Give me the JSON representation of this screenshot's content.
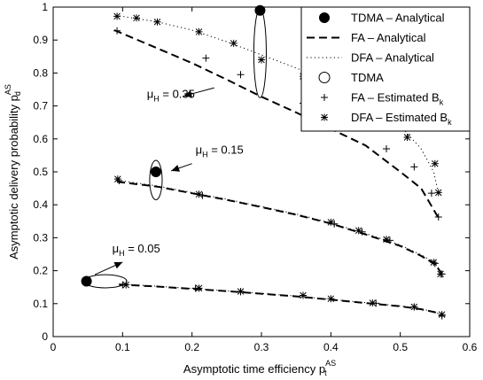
{
  "chart_data": {
    "type": "line",
    "xlabel": "Asymptotic time efficiency p",
    "xlabel_sub": "t",
    "xlabel_sup": "AS",
    "ylabel": "Asymptotic delivery probability p",
    "ylabel_sub": "d",
    "ylabel_sup": "AS",
    "xlim": [
      0,
      0.6
    ],
    "ylim": [
      0,
      1
    ],
    "xticks": [
      0,
      0.1,
      0.2,
      0.3,
      0.4,
      0.5,
      0.6
    ],
    "xtick_labels": [
      "0",
      "0.1",
      "0.2",
      "0.3",
      "0.4",
      "0.5",
      "0.6"
    ],
    "yticks": [
      0,
      0.1,
      0.2,
      0.3,
      0.4,
      0.5,
      0.6,
      0.7,
      0.8,
      0.9,
      1
    ],
    "ytick_labels": [
      "0",
      "0.1",
      "0.2",
      "0.3",
      "0.4",
      "0.5",
      "0.6",
      "0.7",
      "0.8",
      "0.9",
      "1"
    ],
    "grid": false,
    "legend_position": "top-right",
    "legend": [
      {
        "key": "tdma_analytical",
        "text": "TDMA – Analytical",
        "sub": "",
        "marker": "filled-circle",
        "line": "none"
      },
      {
        "key": "fa_analytical",
        "text": "FA – Analytical",
        "sub": "",
        "marker": "none",
        "line": "dashed"
      },
      {
        "key": "dfa_analytical",
        "text": "DFA – Analytical",
        "sub": "",
        "marker": "none",
        "line": "dotted"
      },
      {
        "key": "tdma",
        "text": "TDMA",
        "sub": "",
        "marker": "open-circle",
        "line": "none"
      },
      {
        "key": "fa_estimated",
        "text": "FA – Estimated B",
        "sub": "k",
        "marker": "plus",
        "line": "none"
      },
      {
        "key": "dfa_estimated",
        "text": "DFA – Estimated B",
        "sub": "k",
        "marker": "asterisk",
        "line": "none"
      }
    ],
    "groups": [
      {
        "mu_label": "μ",
        "mu_sub": "H",
        "mu_value": " = 0.35",
        "tdma_point": [
          0.298,
          0.99
        ],
        "ellipse": {
          "cx": 0.298,
          "cy": 0.86,
          "rx": 0.009,
          "ry": 0.135
        },
        "fa_curve": {
          "x": [
            0.088,
            0.15,
            0.2,
            0.25,
            0.3,
            0.35,
            0.4,
            0.45,
            0.5,
            0.53,
            0.555
          ],
          "y": [
            0.93,
            0.875,
            0.83,
            0.78,
            0.728,
            0.68,
            0.63,
            0.58,
            0.5,
            0.45,
            0.36
          ]
        },
        "dfa_curve": {
          "x": [
            0.09,
            0.15,
            0.2,
            0.25,
            0.3,
            0.35,
            0.4,
            0.45,
            0.5,
            0.53,
            0.548,
            0.555
          ],
          "y": [
            0.975,
            0.955,
            0.93,
            0.895,
            0.855,
            0.815,
            0.77,
            0.72,
            0.64,
            0.57,
            0.5,
            0.435
          ]
        },
        "fa_est": {
          "x": [
            0.092,
            0.22,
            0.27,
            0.36,
            0.48,
            0.52,
            0.545,
            0.555
          ],
          "y": [
            0.928,
            0.845,
            0.795,
            0.708,
            0.57,
            0.515,
            0.435,
            0.363
          ]
        },
        "dfa_est": {
          "x": [
            0.092,
            0.12,
            0.15,
            0.21,
            0.26,
            0.3,
            0.36,
            0.44,
            0.51,
            0.55,
            0.555
          ],
          "y": [
            0.972,
            0.967,
            0.955,
            0.925,
            0.89,
            0.84,
            0.79,
            0.72,
            0.605,
            0.525,
            0.437
          ]
        },
        "annotation": {
          "tx": 0.135,
          "ty": 0.725,
          "ax": 0.188,
          "ay": 0.73,
          "bx": 0.232,
          "by": 0.755
        }
      },
      {
        "mu_label": "μ",
        "mu_sub": "H",
        "mu_value": " = 0.15",
        "tdma_point": [
          0.148,
          0.5
        ],
        "ellipse": {
          "cx": 0.148,
          "cy": 0.475,
          "rx": 0.009,
          "ry": 0.06
        },
        "fa_curve": {
          "x": [
            0.092,
            0.15,
            0.2,
            0.25,
            0.3,
            0.35,
            0.4,
            0.45,
            0.5,
            0.53,
            0.55,
            0.56
          ],
          "y": [
            0.47,
            0.455,
            0.435,
            0.415,
            0.393,
            0.37,
            0.343,
            0.31,
            0.275,
            0.245,
            0.22,
            0.19
          ]
        },
        "dfa_curve": {
          "x": [
            0.092,
            0.15,
            0.2,
            0.25,
            0.3,
            0.35,
            0.4,
            0.45,
            0.5,
            0.53,
            0.55,
            0.56
          ],
          "y": [
            0.475,
            0.457,
            0.437,
            0.417,
            0.395,
            0.372,
            0.345,
            0.313,
            0.278,
            0.248,
            0.223,
            0.192
          ]
        },
        "fa_est": {
          "x": [
            0.095,
            0.215,
            0.405,
            0.445,
            0.485,
            0.55,
            0.56
          ],
          "y": [
            0.473,
            0.428,
            0.342,
            0.318,
            0.292,
            0.222,
            0.19
          ]
        },
        "dfa_est": {
          "x": [
            0.093,
            0.21,
            0.4,
            0.44,
            0.48,
            0.548,
            0.558
          ],
          "y": [
            0.478,
            0.432,
            0.347,
            0.322,
            0.295,
            0.225,
            0.19
          ]
        },
        "annotation": {
          "tx": 0.205,
          "ty": 0.555,
          "ax": 0.17,
          "ay": 0.503,
          "bx": 0.2,
          "by": 0.525
        }
      },
      {
        "mu_label": "μ",
        "mu_sub": "H",
        "mu_value": " = 0.05",
        "tdma_point": [
          0.048,
          0.168
        ],
        "ellipse": {
          "cx": 0.075,
          "cy": 0.168,
          "rx": 0.031,
          "ry": 0.02
        },
        "fa_curve": {
          "x": [
            0.095,
            0.15,
            0.2,
            0.25,
            0.3,
            0.35,
            0.4,
            0.45,
            0.5,
            0.53,
            0.55,
            0.56
          ],
          "y": [
            0.158,
            0.152,
            0.145,
            0.138,
            0.13,
            0.122,
            0.112,
            0.102,
            0.092,
            0.083,
            0.074,
            0.063
          ]
        },
        "dfa_curve": {
          "x": [
            0.095,
            0.15,
            0.2,
            0.25,
            0.3,
            0.35,
            0.4,
            0.45,
            0.5,
            0.53,
            0.55,
            0.56
          ],
          "y": [
            0.16,
            0.153,
            0.146,
            0.139,
            0.131,
            0.123,
            0.113,
            0.103,
            0.093,
            0.084,
            0.075,
            0.065
          ]
        },
        "fa_est": {
          "x": [
            0.1,
            0.205,
            0.27,
            0.36,
            0.465,
            0.52,
            0.56
          ],
          "y": [
            0.157,
            0.147,
            0.136,
            0.125,
            0.101,
            0.09,
            0.063
          ]
        },
        "dfa_est": {
          "x": [
            0.105,
            0.21,
            0.27,
            0.36,
            0.4,
            0.46,
            0.52,
            0.56
          ],
          "y": [
            0.157,
            0.147,
            0.137,
            0.125,
            0.115,
            0.102,
            0.09,
            0.067
          ]
        },
        "annotation": {
          "tx": 0.085,
          "ty": 0.255,
          "ax": 0.1,
          "ay": 0.226,
          "bx": 0.06,
          "by": 0.188
        }
      }
    ]
  }
}
